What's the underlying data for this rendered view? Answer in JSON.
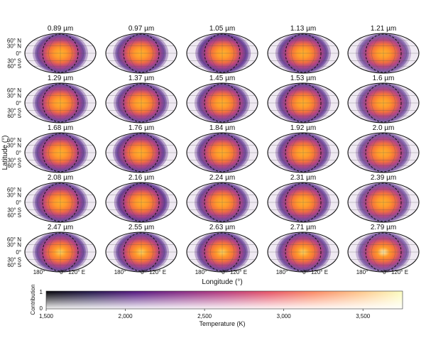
{
  "chart_data": {
    "type": "heatmap",
    "description_title": "Dayside temperature maps by wavelength",
    "wavelength_unit": "µm",
    "panels": [
      {
        "wavelength": "0.89 µm",
        "hot": 0.95,
        "blend": 0.55,
        "shift": 0.0
      },
      {
        "wavelength": "0.97 µm",
        "hot": 0.95,
        "blend": 0.55,
        "shift": -0.02
      },
      {
        "wavelength": "1.05 µm",
        "hot": 0.92,
        "blend": 0.75,
        "shift": 0.03
      },
      {
        "wavelength": "1.13 µm",
        "hot": 0.94,
        "blend": 0.6,
        "shift": 0.0
      },
      {
        "wavelength": "1.21 µm",
        "hot": 0.9,
        "blend": 0.25,
        "shift": 0.0
      },
      {
        "wavelength": "1.29 µm",
        "hot": 0.95,
        "blend": 0.55,
        "shift": 0.0
      },
      {
        "wavelength": "1.37 µm",
        "hot": 0.95,
        "blend": 0.55,
        "shift": 0.0
      },
      {
        "wavelength": "1.45 µm",
        "hot": 0.93,
        "blend": 0.55,
        "shift": 0.0
      },
      {
        "wavelength": "1.53 µm",
        "hot": 0.94,
        "blend": 0.55,
        "shift": 0.0
      },
      {
        "wavelength": "1.6 µm",
        "hot": 0.92,
        "blend": 0.3,
        "shift": 0.0
      },
      {
        "wavelength": "1.68 µm",
        "hot": 0.95,
        "blend": 0.6,
        "shift": 0.0
      },
      {
        "wavelength": "1.76 µm",
        "hot": 0.95,
        "blend": 0.65,
        "shift": -0.03
      },
      {
        "wavelength": "1.84 µm",
        "hot": 0.95,
        "blend": 0.55,
        "shift": 0.0
      },
      {
        "wavelength": "1.92 µm",
        "hot": 0.94,
        "blend": 0.55,
        "shift": 0.0
      },
      {
        "wavelength": "2.0 µm",
        "hot": 0.92,
        "blend": 0.3,
        "shift": 0.0
      },
      {
        "wavelength": "2.08 µm",
        "hot": 0.95,
        "blend": 0.55,
        "shift": 0.0
      },
      {
        "wavelength": "2.16 µm",
        "hot": 0.93,
        "blend": 0.8,
        "shift": 0.02
      },
      {
        "wavelength": "2.24 µm",
        "hot": 0.95,
        "blend": 0.55,
        "shift": 0.0
      },
      {
        "wavelength": "2.31 µm",
        "hot": 0.94,
        "blend": 0.55,
        "shift": 0.0
      },
      {
        "wavelength": "2.39 µm",
        "hot": 0.93,
        "blend": 0.3,
        "shift": 0.0
      },
      {
        "wavelength": "2.47 µm",
        "hot": 0.98,
        "blend": 0.55,
        "shift": 0.0
      },
      {
        "wavelength": "2.55 µm",
        "hot": 0.97,
        "blend": 0.55,
        "shift": 0.0
      },
      {
        "wavelength": "2.63 µm",
        "hot": 0.97,
        "blend": 0.55,
        "shift": 0.0
      },
      {
        "wavelength": "2.71 µm",
        "hot": 0.97,
        "blend": 0.5,
        "shift": 0.0
      },
      {
        "wavelength": "2.79 µm",
        "hot": 1.0,
        "blend": 0.25,
        "shift": 0.0
      }
    ],
    "lat_ticks": [
      "60° N",
      "30° N",
      "0°",
      "30° S",
      "60° S"
    ],
    "lon_ticks": [
      "180°",
      "0°",
      "120° E"
    ],
    "ylabel": "Latitude (°)",
    "xlabel": "Longitude (°)",
    "colorbar": {
      "label": "Temperature (K)",
      "range": [
        1500,
        3750
      ],
      "ticks": [
        1500,
        2000,
        2500,
        3000,
        3500
      ],
      "tick_labels": [
        "1,500",
        "2,000",
        "2,500",
        "3,000",
        "3,500"
      ],
      "contribution_label": "Contribution",
      "contribution_ticks": [
        "1",
        "0"
      ],
      "stops": [
        "#000004",
        "#1c1044",
        "#4f127b",
        "#812581",
        "#b5367a",
        "#e55064",
        "#fb8761",
        "#fec287",
        "#fcfdbf"
      ]
    }
  }
}
